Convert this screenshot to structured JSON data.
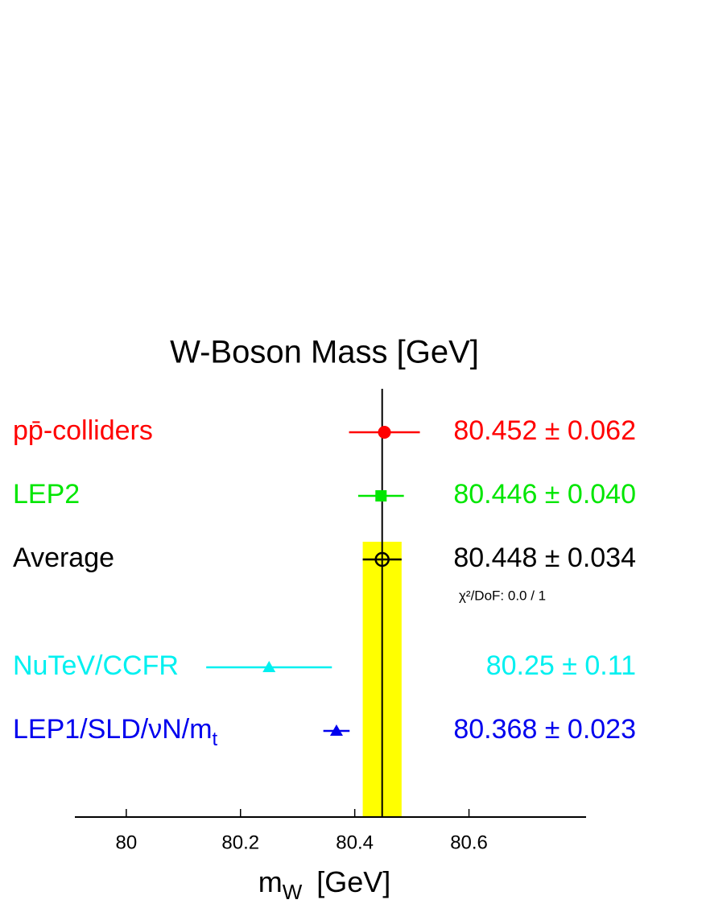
{
  "chart_data": {
    "type": "errorbar",
    "title": "W-Boson Mass  [GeV]",
    "xlabel": "m",
    "xlabel_sub": "W",
    "xlabel_unit": "[GeV]",
    "xlim": [
      79.91,
      80.805
    ],
    "xticks": [
      80,
      80.2,
      80.4,
      80.6
    ],
    "series": [
      {
        "name": "pp̄-colliders",
        "color": "#ff0000",
        "marker": "circle",
        "values": [
          80.452
        ],
        "errors": [
          0.062
        ],
        "value_labels": [
          "80.452 ± 0.062"
        ]
      },
      {
        "name": "LEP2",
        "color": "#00e600",
        "marker": "square",
        "values": [
          80.446
        ],
        "errors": [
          0.04
        ],
        "value_labels": [
          "80.446 ± 0.040"
        ]
      },
      {
        "name": "Average",
        "color": "#000000",
        "marker": "open-circle",
        "band": true,
        "band_color": "#ffff00",
        "values": [
          80.448
        ],
        "errors": [
          0.034
        ],
        "value_labels": [
          "80.448 ± 0.034"
        ],
        "note": "χ²/DoF: 0.0 / 1"
      },
      {
        "name": "NuTeV/CCFR",
        "color": "#00f0f0",
        "marker": "triangle",
        "values": [
          80.25
        ],
        "errors": [
          0.11
        ],
        "value_labels": [
          "80.25 ± 0.11"
        ]
      },
      {
        "name": "LEP1/SLD/νN/m",
        "name_sub": "t",
        "color": "#0000ee",
        "marker": "triangle",
        "values": [
          80.368
        ],
        "errors": [
          0.023
        ],
        "value_labels": [
          "80.368 ± 0.023"
        ]
      }
    ]
  }
}
